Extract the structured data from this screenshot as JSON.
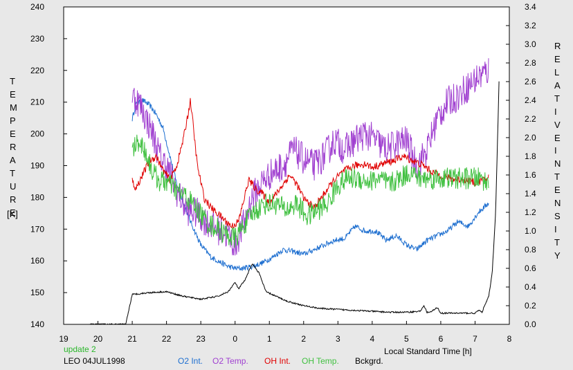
{
  "chart_data": {
    "type": "line",
    "title": "",
    "x_axis": {
      "label": "Local Standard Time [h]",
      "range": [
        19,
        32
      ],
      "ticks": [
        19,
        20,
        21,
        22,
        23,
        24,
        25,
        26,
        27,
        28,
        29,
        30,
        31,
        32
      ],
      "tick_labels": [
        "19",
        "20",
        "21",
        "22",
        "23",
        "0",
        "1",
        "2",
        "3",
        "4",
        "5",
        "6",
        "7",
        "8"
      ]
    },
    "y_left": {
      "label_letters": [
        "T",
        "E",
        "M",
        "P",
        "E",
        "R",
        "A",
        "T",
        "U",
        "R",
        "E"
      ],
      "unit": "[K]",
      "range": [
        140,
        240
      ],
      "ticks": [
        140,
        150,
        160,
        170,
        180,
        190,
        200,
        210,
        220,
        230,
        240
      ]
    },
    "y_right": {
      "label_letters": [
        "R",
        "E",
        "L",
        "A",
        "T",
        "I",
        "V",
        "E"
      ],
      "label_letters_2": [
        "I",
        "N",
        "T",
        "E",
        "N",
        "S",
        "I",
        "T",
        "Y"
      ],
      "range": [
        0.0,
        3.4
      ],
      "ticks": [
        "0.0",
        "0.2",
        "0.4",
        "0.6",
        "0.8",
        "1.0",
        "1.2",
        "1.4",
        "1.6",
        "1.8",
        "2.0",
        "2.2",
        "2.4",
        "2.6",
        "2.8",
        "3.0",
        "3.2",
        "3.4"
      ]
    },
    "grid": false,
    "footer": {
      "update": "update 2",
      "site_date": "LEO 04JUL1998"
    },
    "series": [
      {
        "name": "O2 Int.",
        "axis": "right",
        "color": "#1e6fd0",
        "noise": 0.03,
        "x": [
          21.0,
          21.1,
          21.3,
          21.5,
          21.7,
          21.9,
          22.1,
          22.3,
          22.5,
          22.7,
          23.0,
          23.3,
          23.6,
          23.8,
          24.0,
          24.2,
          24.5,
          24.8,
          25.1,
          25.4,
          25.7,
          26.0,
          26.3,
          26.6,
          26.9,
          27.2,
          27.5,
          27.8,
          28.1,
          28.4,
          28.7,
          29.0,
          29.3,
          29.6,
          29.9,
          30.2,
          30.5,
          30.8,
          31.1,
          31.4
        ],
        "y": [
          2.2,
          2.35,
          2.4,
          2.35,
          2.25,
          2.1,
          1.8,
          1.5,
          1.3,
          1.1,
          0.85,
          0.72,
          0.66,
          0.62,
          0.6,
          0.6,
          0.62,
          0.66,
          0.72,
          0.8,
          0.78,
          0.75,
          0.8,
          0.85,
          0.9,
          0.92,
          1.05,
          1.0,
          1.0,
          0.9,
          0.95,
          0.85,
          0.8,
          0.9,
          0.95,
          1.0,
          1.1,
          1.05,
          1.2,
          1.3
        ]
      },
      {
        "name": "O2 Temp.",
        "axis": "left",
        "color": "#a040d0",
        "noise": 5,
        "x": [
          21.0,
          21.2,
          21.4,
          21.6,
          21.8,
          22.0,
          22.3,
          22.6,
          22.9,
          23.2,
          23.5,
          23.8,
          24.0,
          24.2,
          24.5,
          24.8,
          25.1,
          25.4,
          25.7,
          26.0,
          26.3,
          26.6,
          26.9,
          27.2,
          27.5,
          27.8,
          28.1,
          28.4,
          28.7,
          29.0,
          29.3,
          29.6,
          29.9,
          30.2,
          30.5,
          30.8,
          31.1,
          31.4
        ],
        "y": [
          212,
          210,
          205,
          200,
          193,
          190,
          182,
          176,
          175,
          172,
          170,
          168,
          165,
          170,
          180,
          185,
          188,
          190,
          195,
          192,
          190,
          193,
          198,
          195,
          198,
          200,
          198,
          195,
          197,
          198,
          190,
          195,
          205,
          210,
          212,
          215,
          218,
          220
        ]
      },
      {
        "name": "OH Int.",
        "axis": "right",
        "color": "#e00000",
        "noise": 0.04,
        "x": [
          21.0,
          21.1,
          21.3,
          21.5,
          21.7,
          21.9,
          22.1,
          22.3,
          22.5,
          22.7,
          22.9,
          23.1,
          23.3,
          23.6,
          23.9,
          24.1,
          24.4,
          24.6,
          24.8,
          25.0,
          25.3,
          25.6,
          25.8,
          26.0,
          26.3,
          26.6,
          26.9,
          27.2,
          27.5,
          27.8,
          28.0,
          28.3,
          28.6,
          28.9,
          29.2,
          29.5,
          29.8,
          30.1,
          30.4,
          30.7,
          31.0,
          31.3,
          31.4
        ],
        "y": [
          1.55,
          1.45,
          1.6,
          1.75,
          1.8,
          1.65,
          1.55,
          1.7,
          2.0,
          2.4,
          1.7,
          1.35,
          1.25,
          1.15,
          1.05,
          1.1,
          1.55,
          1.45,
          1.4,
          1.3,
          1.45,
          1.6,
          1.5,
          1.35,
          1.25,
          1.4,
          1.55,
          1.65,
          1.7,
          1.72,
          1.68,
          1.72,
          1.75,
          1.8,
          1.75,
          1.7,
          1.62,
          1.58,
          1.55,
          1.55,
          1.52,
          1.55,
          1.58
        ]
      },
      {
        "name": "OH Temp.",
        "axis": "left",
        "color": "#40c040",
        "noise": 3.5,
        "x": [
          21.0,
          21.2,
          21.4,
          21.6,
          21.8,
          22.0,
          22.3,
          22.6,
          22.9,
          23.2,
          23.5,
          23.8,
          24.0,
          24.3,
          24.6,
          24.9,
          25.2,
          25.5,
          25.8,
          26.1,
          26.4,
          26.7,
          27.0,
          27.3,
          27.6,
          27.9,
          28.2,
          28.5,
          28.8,
          29.1,
          29.4,
          29.7,
          30.0,
          30.3,
          30.6,
          30.9,
          31.2,
          31.4
        ],
        "y": [
          195,
          198,
          194,
          188,
          185,
          185,
          182,
          180,
          176,
          172,
          170,
          168,
          167,
          172,
          176,
          178,
          178,
          176,
          178,
          174,
          176,
          178,
          184,
          186,
          186,
          185,
          186,
          184,
          186,
          188,
          186,
          186,
          186,
          186,
          186,
          186,
          186,
          184
        ]
      },
      {
        "name": "Bckgrd.",
        "axis": "right",
        "color": "#000000",
        "noise": 0.008,
        "x": [
          19.7,
          20.8,
          20.82,
          21.0,
          21.5,
          22.0,
          22.5,
          23.0,
          23.5,
          23.8,
          24.0,
          24.1,
          24.3,
          24.5,
          24.7,
          24.9,
          25.2,
          25.5,
          26.0,
          26.5,
          27.0,
          27.5,
          28.0,
          28.5,
          29.0,
          29.4,
          29.5,
          29.6,
          29.7,
          29.9,
          30.0,
          30.5,
          31.0,
          31.1,
          31.2,
          31.4,
          31.5,
          31.6,
          31.7
        ],
        "y": [
          0.0,
          0.0,
          0.02,
          0.32,
          0.34,
          0.35,
          0.3,
          0.27,
          0.3,
          0.35,
          0.45,
          0.38,
          0.48,
          0.65,
          0.55,
          0.35,
          0.3,
          0.25,
          0.2,
          0.17,
          0.16,
          0.15,
          0.14,
          0.13,
          0.13,
          0.14,
          0.2,
          0.13,
          0.13,
          0.18,
          0.12,
          0.12,
          0.12,
          0.15,
          0.13,
          0.3,
          0.55,
          1.2,
          2.6
        ]
      }
    ]
  }
}
